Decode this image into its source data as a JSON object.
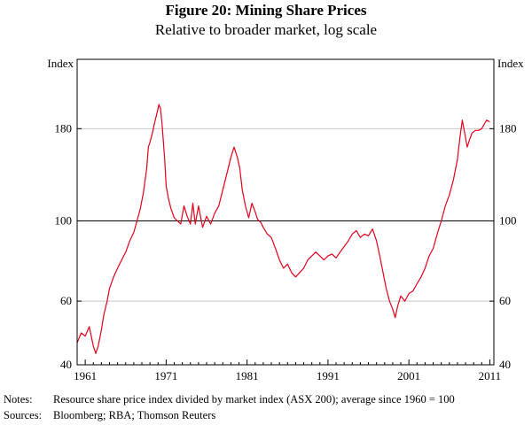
{
  "header": {
    "title": "Figure 20: Mining Share Prices",
    "subtitle": "Relative to broader market, log scale"
  },
  "footer": {
    "notes_label": "Notes:",
    "notes_text": "Resource share price index divided by market index (ASX 200); average since 1960 = 100",
    "sources_label": "Sources:",
    "sources_text": "Bloomberg; RBA; Thomson Reuters"
  },
  "colors": {
    "series": "#e2001a",
    "axis": "#000000",
    "gridline": "#c8c8c8",
    "reference": "#000000"
  },
  "chart_data": {
    "type": "line",
    "title": "Figure 20: Mining Share Prices",
    "subtitle": "Relative to broader market, log scale",
    "ylabel_left": "Index",
    "ylabel_right": "Index",
    "yscale": "log",
    "ylim": [
      40,
      280
    ],
    "yticks": [
      40,
      60,
      100,
      180
    ],
    "xlim": [
      1960,
      2011.5
    ],
    "xticks": [
      1961,
      1971,
      1981,
      1991,
      2001,
      2011
    ],
    "reference_line": 100,
    "grid": "horizontal",
    "series": [
      {
        "name": "Resource share price index relative to market index",
        "x": [
          1960.0,
          1960.5,
          1961.0,
          1961.5,
          1962.0,
          1962.3,
          1962.6,
          1963.0,
          1963.3,
          1963.7,
          1964.0,
          1964.5,
          1965.0,
          1965.5,
          1966.0,
          1966.5,
          1967.0,
          1967.4,
          1967.8,
          1968.2,
          1968.6,
          1968.8,
          1969.0,
          1969.3,
          1969.6,
          1969.9,
          1970.1,
          1970.3,
          1970.5,
          1970.8,
          1971.0,
          1971.3,
          1971.6,
          1972.0,
          1972.4,
          1972.8,
          1973.2,
          1973.6,
          1974.0,
          1974.3,
          1974.6,
          1975.0,
          1975.5,
          1976.0,
          1976.5,
          1977.0,
          1977.5,
          1978.0,
          1978.5,
          1979.0,
          1979.4,
          1979.8,
          1980.1,
          1980.4,
          1980.8,
          1981.2,
          1981.6,
          1982.0,
          1982.3,
          1982.7,
          1983.0,
          1983.5,
          1984.0,
          1984.5,
          1985.0,
          1985.5,
          1986.0,
          1986.5,
          1987.0,
          1987.5,
          1988.0,
          1988.5,
          1989.0,
          1989.5,
          1990.0,
          1990.5,
          1991.0,
          1991.5,
          1992.0,
          1992.5,
          1993.0,
          1993.5,
          1994.0,
          1994.5,
          1995.0,
          1995.5,
          1996.0,
          1996.5,
          1997.0,
          1997.4,
          1997.8,
          1998.2,
          1998.6,
          1999.0,
          1999.3,
          1999.6,
          2000.0,
          2000.5,
          2001.0,
          2001.5,
          2002.0,
          2002.5,
          2003.0,
          2003.5,
          2004.0,
          2004.5,
          2005.0,
          2005.5,
          2006.0,
          2006.5,
          2007.0,
          2007.3,
          2007.6,
          2007.9,
          2008.2,
          2008.5,
          2008.8,
          2009.2,
          2009.6,
          2010.0,
          2010.3,
          2010.6,
          2011.0
        ],
        "values": [
          46,
          49,
          48,
          51,
          45,
          43,
          45,
          50,
          55,
          60,
          65,
          70,
          74,
          78,
          82,
          88,
          93,
          100,
          108,
          120,
          140,
          160,
          165,
          175,
          188,
          200,
          210,
          205,
          185,
          150,
          125,
          115,
          108,
          102,
          100,
          98,
          110,
          103,
          98,
          112,
          98,
          110,
          96,
          103,
          98,
          105,
          110,
          122,
          135,
          150,
          160,
          150,
          140,
          122,
          110,
          102,
          112,
          106,
          101,
          99,
          96,
          92,
          90,
          84,
          78,
          74,
          76,
          72,
          70,
          72,
          74,
          78,
          80,
          82,
          80,
          78,
          80,
          81,
          79,
          82,
          85,
          88,
          92,
          94,
          90,
          92,
          91,
          95,
          88,
          80,
          72,
          65,
          60,
          57,
          54,
          58,
          62,
          60,
          63,
          64,
          67,
          70,
          74,
          80,
          84,
          92,
          100,
          110,
          118,
          130,
          148,
          170,
          190,
          175,
          160,
          168,
          175,
          178,
          178,
          180,
          185,
          190,
          188
        ]
      }
    ]
  }
}
